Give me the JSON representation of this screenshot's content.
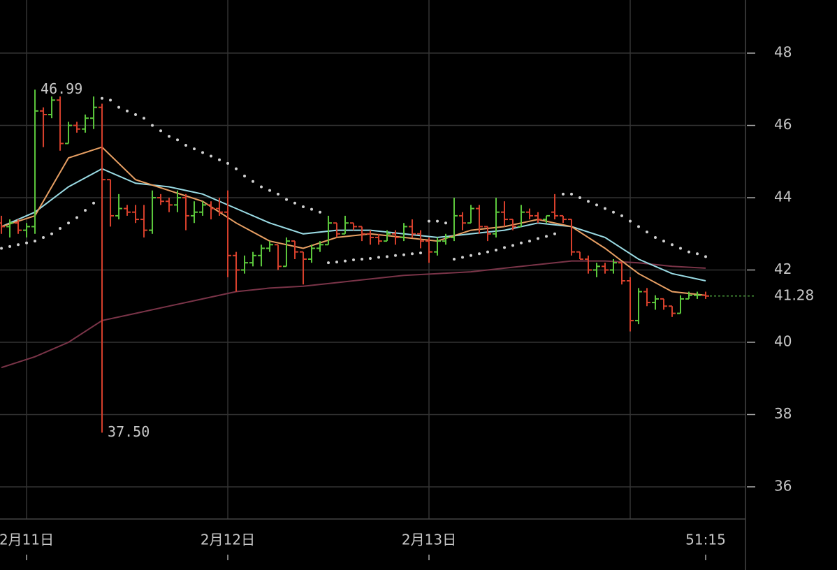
{
  "chart_data": {
    "type": "ohlc",
    "x": [
      -3,
      -2,
      -1,
      0,
      1,
      2,
      3,
      4,
      5,
      6,
      7,
      8,
      9,
      10,
      11,
      12,
      13,
      14,
      15,
      16,
      17,
      18,
      19,
      20,
      21,
      22,
      23,
      24,
      25,
      26,
      27,
      28,
      29,
      30,
      31,
      32,
      33,
      34,
      35,
      36,
      37,
      38,
      39,
      40,
      41,
      42,
      43,
      44,
      45,
      46,
      47,
      48,
      49,
      50,
      51,
      52,
      53,
      54,
      55,
      56,
      57,
      58,
      59,
      60,
      61,
      62,
      63,
      64,
      65,
      66,
      67,
      68,
      69,
      70,
      71,
      72,
      73,
      74,
      75,
      76,
      77,
      78,
      79,
      80,
      81
    ],
    "ohlc": [
      [
        43.3,
        43.5,
        43.0,
        43.2
      ],
      [
        43.2,
        43.4,
        42.9,
        43.3
      ],
      [
        43.3,
        43.4,
        43.0,
        43.1
      ],
      [
        43.1,
        43.3,
        42.9,
        43.2
      ],
      [
        43.2,
        46.99,
        43.0,
        46.4
      ],
      [
        46.4,
        46.5,
        45.4,
        46.3
      ],
      [
        46.3,
        46.8,
        46.2,
        46.7
      ],
      [
        46.7,
        46.8,
        45.3,
        45.5
      ],
      [
        45.5,
        46.1,
        45.5,
        46.0
      ],
      [
        46.0,
        46.1,
        45.8,
        45.9
      ],
      [
        45.9,
        46.3,
        45.8,
        46.2
      ],
      [
        46.2,
        46.8,
        45.9,
        46.5
      ],
      [
        46.5,
        46.6,
        37.5,
        44.5
      ],
      [
        44.5,
        44.5,
        43.2,
        43.5
      ],
      [
        43.5,
        44.1,
        43.4,
        43.7
      ],
      [
        43.7,
        43.8,
        43.5,
        43.6
      ],
      [
        43.6,
        43.8,
        43.3,
        43.4
      ],
      [
        43.4,
        43.8,
        42.9,
        43.1
      ],
      [
        43.1,
        44.2,
        43.0,
        44.0
      ],
      [
        44.0,
        44.1,
        43.8,
        43.9
      ],
      [
        43.9,
        44.0,
        43.6,
        43.8
      ],
      [
        43.8,
        44.2,
        43.6,
        44.0
      ],
      [
        44.0,
        44.1,
        43.1,
        43.5
      ],
      [
        43.5,
        43.9,
        43.3,
        43.6
      ],
      [
        43.6,
        43.9,
        43.5,
        43.8
      ],
      [
        43.8,
        43.9,
        43.4,
        43.7
      ],
      [
        43.7,
        44.0,
        43.5,
        43.6
      ],
      [
        43.6,
        44.2,
        41.8,
        42.4
      ],
      [
        42.4,
        42.5,
        41.4,
        42.0
      ],
      [
        42.0,
        42.4,
        41.9,
        42.2
      ],
      [
        42.2,
        42.5,
        42.1,
        42.4
      ],
      [
        42.4,
        42.7,
        42.1,
        42.6
      ],
      [
        42.6,
        42.8,
        42.5,
        42.7
      ],
      [
        42.7,
        42.7,
        42.0,
        42.1
      ],
      [
        42.1,
        42.9,
        42.1,
        42.8
      ],
      [
        42.8,
        42.8,
        42.3,
        42.5
      ],
      [
        42.5,
        42.5,
        41.6,
        42.3
      ],
      [
        42.3,
        42.7,
        42.2,
        42.6
      ],
      [
        42.6,
        42.8,
        42.5,
        42.7
      ],
      [
        42.7,
        43.5,
        42.7,
        43.3
      ],
      [
        43.3,
        43.3,
        42.9,
        43.0
      ],
      [
        43.0,
        43.5,
        43.0,
        43.3
      ],
      [
        43.3,
        43.3,
        43.1,
        43.2
      ],
      [
        43.2,
        43.2,
        42.8,
        43.0
      ],
      [
        43.0,
        43.1,
        42.7,
        42.9
      ],
      [
        42.9,
        43.0,
        42.7,
        42.8
      ],
      [
        42.8,
        43.1,
        42.8,
        43.0
      ],
      [
        43.0,
        43.1,
        42.7,
        42.9
      ],
      [
        42.9,
        43.3,
        42.8,
        43.2
      ],
      [
        43.2,
        43.4,
        42.9,
        43.0
      ],
      [
        43.0,
        43.1,
        42.6,
        42.8
      ],
      [
        42.8,
        42.9,
        42.2,
        42.5
      ],
      [
        42.5,
        42.9,
        42.4,
        42.8
      ],
      [
        42.8,
        43.0,
        42.7,
        42.9
      ],
      [
        42.9,
        44.0,
        42.8,
        43.5
      ],
      [
        43.5,
        43.6,
        43.1,
        43.3
      ],
      [
        43.3,
        43.8,
        43.3,
        43.7
      ],
      [
        43.7,
        43.8,
        43.0,
        43.2
      ],
      [
        43.2,
        43.2,
        42.8,
        43.0
      ],
      [
        43.0,
        44.0,
        42.9,
        43.6
      ],
      [
        43.6,
        43.9,
        43.2,
        43.4
      ],
      [
        43.4,
        43.4,
        43.1,
        43.2
      ],
      [
        43.2,
        43.8,
        43.2,
        43.6
      ],
      [
        43.6,
        43.7,
        43.4,
        43.5
      ],
      [
        43.5,
        43.6,
        43.3,
        43.4
      ],
      [
        43.4,
        43.5,
        43.3,
        43.5
      ],
      [
        43.6,
        44.1,
        43.4,
        43.5
      ],
      [
        43.5,
        43.5,
        43.3,
        43.4
      ],
      [
        43.4,
        43.4,
        42.4,
        42.5
      ],
      [
        42.5,
        42.5,
        42.3,
        42.3
      ],
      [
        42.3,
        42.4,
        41.9,
        42.0
      ],
      [
        42.0,
        42.2,
        41.8,
        42.1
      ],
      [
        42.1,
        42.2,
        41.9,
        42.0
      ],
      [
        42.0,
        42.3,
        41.9,
        42.2
      ],
      [
        42.2,
        42.2,
        41.6,
        41.7
      ],
      [
        41.7,
        41.8,
        40.3,
        40.6
      ],
      [
        40.6,
        41.5,
        40.5,
        41.4
      ],
      [
        41.4,
        41.5,
        41.0,
        41.1
      ],
      [
        41.1,
        41.3,
        40.9,
        41.2
      ],
      [
        41.2,
        41.2,
        40.9,
        41.0
      ],
      [
        41.0,
        41.0,
        40.7,
        40.8
      ],
      [
        40.8,
        41.3,
        40.8,
        41.2
      ],
      [
        41.2,
        41.4,
        41.2,
        41.3
      ],
      [
        41.3,
        41.4,
        41.2,
        41.3
      ],
      [
        41.3,
        41.4,
        41.2,
        41.28
      ]
    ],
    "up_color": "#5cc83c",
    "down_color": "#d8402c",
    "series": [
      {
        "color": "#7a3448",
        "x": [
          -3,
          1,
          5,
          9,
          13,
          17,
          21,
          25,
          29,
          33,
          37,
          41,
          45,
          49,
          53,
          57,
          61,
          65,
          69,
          73,
          77,
          81
        ],
        "values": [
          39.3,
          39.6,
          40.0,
          40.6,
          40.8,
          41.0,
          41.2,
          41.4,
          41.5,
          41.55,
          41.65,
          41.75,
          41.85,
          41.9,
          41.95,
          42.05,
          42.15,
          42.25,
          42.25,
          42.2,
          42.1,
          42.05
        ]
      },
      {
        "color": "#9adbe4",
        "x": [
          -3,
          1,
          5,
          9,
          13,
          17,
          21,
          25,
          29,
          33,
          37,
          41,
          45,
          49,
          53,
          57,
          61,
          65,
          69,
          73,
          77,
          81
        ],
        "values": [
          43.2,
          43.6,
          44.3,
          44.8,
          44.4,
          44.3,
          44.1,
          43.7,
          43.3,
          43.0,
          43.1,
          43.1,
          43.0,
          42.9,
          43.0,
          43.1,
          43.3,
          43.2,
          42.9,
          42.3,
          41.9,
          41.7
        ]
      },
      {
        "color": "#e8a064",
        "x": [
          -3,
          1,
          5,
          9,
          13,
          17,
          21,
          25,
          29,
          33,
          37,
          41,
          45,
          49,
          53,
          57,
          61,
          65,
          69,
          73,
          77,
          81
        ],
        "values": [
          43.2,
          43.5,
          45.1,
          45.4,
          44.5,
          44.2,
          43.9,
          43.3,
          42.8,
          42.6,
          42.9,
          43.0,
          42.9,
          42.8,
          43.1,
          43.2,
          43.4,
          43.2,
          42.6,
          41.9,
          41.4,
          41.3
        ]
      }
    ],
    "sar": {
      "color": "#d0d0d0",
      "values": [
        42.6,
        42.65,
        42.7,
        42.75,
        42.8,
        42.9,
        43.0,
        43.15,
        43.3,
        43.45,
        43.65,
        43.85,
        46.75,
        46.7,
        46.5,
        46.4,
        46.3,
        46.2,
        46.0,
        45.85,
        45.7,
        45.6,
        45.45,
        45.35,
        45.25,
        45.15,
        45.05,
        44.95,
        44.8,
        44.6,
        44.45,
        44.3,
        44.2,
        44.1,
        43.95,
        43.85,
        43.75,
        43.68,
        43.6,
        42.2,
        42.22,
        42.25,
        42.28,
        42.3,
        42.32,
        42.35,
        42.37,
        42.4,
        42.42,
        42.45,
        42.47,
        43.35,
        43.35,
        43.3,
        42.3,
        42.35,
        42.4,
        42.45,
        42.5,
        42.55,
        42.62,
        42.68,
        42.75,
        42.8,
        42.87,
        42.93,
        43.0,
        44.1,
        44.1,
        44.0,
        43.9,
        43.8,
        43.7,
        43.6,
        43.5,
        43.35,
        43.2,
        43.05,
        42.9,
        42.8,
        42.7,
        42.6,
        42.5,
        42.45,
        42.37
      ]
    },
    "xlim": [
      -3.17,
      85.75
    ],
    "ylim": [
      35.11,
      49.47
    ],
    "yticks": [
      36,
      38,
      40,
      42,
      44,
      46,
      48
    ],
    "xticks": [
      {
        "value": 0,
        "label": "2月11日"
      },
      {
        "value": 24,
        "label": "2月12日"
      },
      {
        "value": 48,
        "label": "2月13日"
      },
      {
        "value": 81,
        "label": "51:15"
      }
    ],
    "xgrid": [
      0,
      24,
      48,
      72
    ],
    "grid": true,
    "annotations": [
      {
        "x": 1,
        "value": 46.99
      },
      {
        "x": 9,
        "value": 37.5,
        "label": "37.50"
      }
    ],
    "last_price": 41.28,
    "last_price_color": "#4a9a3a"
  }
}
